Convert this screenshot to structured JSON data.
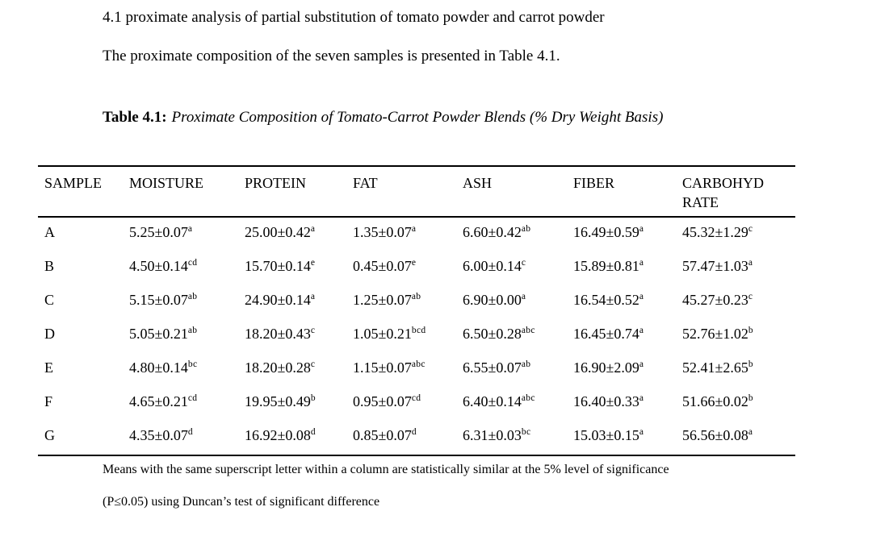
{
  "page": {
    "heading": "4.1 proximate analysis of partial substitution of tomato powder and carrot powder",
    "intro": "The proximate composition of the seven samples is presented in Table 4.1.",
    "caption": {
      "label": "Table 4.1:",
      "title": "Proximate Composition of Tomato-Carrot Powder Blends (% Dry Weight Basis)"
    }
  },
  "colors": {
    "background": "#ffffff",
    "text": "#000000",
    "table_rule": "#000000"
  },
  "chart_data": {
    "type": "table",
    "title": "Proximate Composition of Tomato-Carrot Powder Blends (% Dry Weight Basis)",
    "columns": [
      "SAMPLE",
      "MOISTURE",
      "PROTEIN",
      "FAT",
      "ASH",
      "FIBER",
      "CARBOHYDRATE"
    ],
    "rows": [
      {
        "sample": "A",
        "values": [
          {
            "v": "5.25±0.07",
            "s": "a"
          },
          {
            "v": "25.00±0.42",
            "s": "a"
          },
          {
            "v": "1.35±0.07",
            "s": "a"
          },
          {
            "v": "6.60±0.42",
            "s": "ab"
          },
          {
            "v": "16.49±0.59",
            "s": "a"
          },
          {
            "v": "45.32±1.29",
            "s": "c"
          }
        ]
      },
      {
        "sample": "B",
        "values": [
          {
            "v": "4.50±0.14",
            "s": "cd"
          },
          {
            "v": "15.70±0.14",
            "s": "e"
          },
          {
            "v": "0.45±0.07",
            "s": "e"
          },
          {
            "v": "6.00±0.14",
            "s": "c"
          },
          {
            "v": "15.89±0.81",
            "s": "a"
          },
          {
            "v": "57.47±1.03",
            "s": "a"
          }
        ]
      },
      {
        "sample": "C",
        "values": [
          {
            "v": "5.15±0.07",
            "s": "ab"
          },
          {
            "v": "24.90±0.14",
            "s": "a"
          },
          {
            "v": "1.25±0.07",
            "s": "ab"
          },
          {
            "v": "6.90±0.00",
            "s": "a"
          },
          {
            "v": "16.54±0.52",
            "s": "a"
          },
          {
            "v": "45.27±0.23",
            "s": "c"
          }
        ]
      },
      {
        "sample": "D",
        "values": [
          {
            "v": "5.05±0.21",
            "s": "ab"
          },
          {
            "v": "18.20±0.43",
            "s": "c"
          },
          {
            "v": "1.05±0.21",
            "s": "bcd"
          },
          {
            "v": "6.50±0.28",
            "s": "abc"
          },
          {
            "v": "16.45±0.74",
            "s": "a"
          },
          {
            "v": "52.76±1.02",
            "s": "b"
          }
        ]
      },
      {
        "sample": "E",
        "values": [
          {
            "v": "4.80±0.14",
            "s": "bc"
          },
          {
            "v": "18.20±0.28",
            "s": "c"
          },
          {
            "v": "1.15±0.07",
            "s": "abc"
          },
          {
            "v": "6.55±0.07",
            "s": "ab"
          },
          {
            "v": "16.90±2.09",
            "s": "a"
          },
          {
            "v": "52.41±2.65",
            "s": "b"
          }
        ]
      },
      {
        "sample": "F",
        "values": [
          {
            "v": "4.65±0.21",
            "s": "cd"
          },
          {
            "v": "19.95±0.49",
            "s": "b"
          },
          {
            "v": "0.95±0.07",
            "s": "cd"
          },
          {
            "v": "6.40±0.14",
            "s": "abc"
          },
          {
            "v": "16.40±0.33",
            "s": "a"
          },
          {
            "v": "51.66±0.02",
            "s": "b"
          }
        ]
      },
      {
        "sample": "G",
        "values": [
          {
            "v": "4.35±0.07",
            "s": "d"
          },
          {
            "v": "16.92±0.08",
            "s": "d"
          },
          {
            "v": "0.85±0.07",
            "s": "d"
          },
          {
            "v": "6.31±0.03",
            "s": "bc"
          },
          {
            "v": "15.03±0.15",
            "s": "a"
          },
          {
            "v": "56.56±0.08",
            "s": "a"
          }
        ]
      }
    ]
  },
  "footnote": {
    "line1": "Means with the same superscript letter within a column are statistically similar at the 5% level of significance",
    "line2": "(P≤0.05) using Duncan’s test of significant difference"
  }
}
